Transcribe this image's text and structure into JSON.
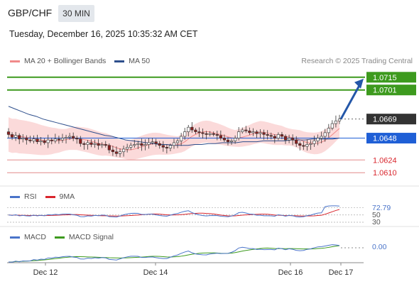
{
  "header": {
    "symbol": "GBP/CHF",
    "timeframe": "30 MIN",
    "datetime": "Tuesday, December 16, 2025 10:35:32 AM CET",
    "research": "Research © 2025 Trading Central"
  },
  "legends": {
    "price": [
      {
        "label": "MA 20 + Bollinger Bands",
        "color": "#f08a8a"
      },
      {
        "label": "MA 50",
        "color": "#2e4f8c"
      }
    ],
    "rsi": [
      {
        "label": "RSI",
        "color": "#4a74c9"
      },
      {
        "label": "9MA",
        "color": "#d9262d"
      }
    ],
    "macd": [
      {
        "label": "MACD",
        "color": "#4a74c9"
      },
      {
        "label": "MACD Signal",
        "color": "#3d9a1e"
      }
    ]
  },
  "colors": {
    "resistance": "#3d9a1e",
    "support": "#e38a8a",
    "pivot": "#1f5fd6",
    "current": "#333333",
    "arrow": "#2457a8",
    "bb_fill": "#fbd6d6",
    "candle_up": "#ffffff",
    "candle_down": "#8b1f1f"
  },
  "chart_data": [
    {
      "type": "candlestick",
      "title": "",
      "x_tick_labels": [
        "Dec 12",
        "Dec 14",
        "Dec 16",
        "Dec 17"
      ],
      "ylim": [
        1.06,
        1.0725
      ],
      "levels": [
        {
          "value": 1.0715,
          "label": "1.0715",
          "kind": "resistance"
        },
        {
          "value": 1.0701,
          "label": "1.0701",
          "kind": "resistance"
        },
        {
          "value": 1.0669,
          "label": "1.0669",
          "kind": "current"
        },
        {
          "value": 1.0648,
          "label": "1.0648",
          "kind": "pivot"
        },
        {
          "value": 1.0624,
          "label": "1.0624",
          "kind": "support"
        },
        {
          "value": 1.061,
          "label": "1.0610",
          "kind": "support"
        }
      ],
      "close_series": [
        1.0652,
        1.0649,
        1.0651,
        1.0647,
        1.0648,
        1.0646,
        1.0645,
        1.0647,
        1.0644,
        1.0645,
        1.0643,
        1.0646,
        1.0645,
        1.0647,
        1.0646,
        1.0648,
        1.0649,
        1.065,
        1.0648,
        1.0647,
        1.0642,
        1.0641,
        1.0643,
        1.0641,
        1.0642,
        1.064,
        1.0641,
        1.064,
        1.0635,
        1.0633,
        1.0631,
        1.0633,
        1.0636,
        1.0638,
        1.064,
        1.0641,
        1.0642,
        1.064,
        1.0641,
        1.0643,
        1.0644,
        1.0642,
        1.064,
        1.0638,
        1.0637,
        1.064,
        1.0643,
        1.0645,
        1.065,
        1.0655,
        1.066,
        1.0657,
        1.0655,
        1.0654,
        1.0653,
        1.0652,
        1.0653,
        1.0652,
        1.0651,
        1.0648,
        1.0646,
        1.0644,
        1.0645,
        1.0648,
        1.0655,
        1.0657,
        1.0656,
        1.0654,
        1.0655,
        1.0653,
        1.0654,
        1.0652,
        1.0651,
        1.065,
        1.0648,
        1.0652,
        1.065,
        1.0646,
        1.0648,
        1.0646,
        1.0642,
        1.064,
        1.0639,
        1.0641,
        1.0642,
        1.0645,
        1.0648,
        1.065,
        1.0654,
        1.0659,
        1.0664,
        1.0667,
        1.0669
      ],
      "ma50_series": [
        1.0683,
        1.068,
        1.0677,
        1.0674,
        1.0672,
        1.0669,
        1.0667,
        1.0665,
        1.0663,
        1.0661,
        1.0659,
        1.0657,
        1.0655,
        1.0653,
        1.0651,
        1.065,
        1.0648,
        1.0646,
        1.0645,
        1.0644,
        1.0643,
        1.0642,
        1.0641,
        1.0641,
        1.064,
        1.064,
        1.064,
        1.0641,
        1.0641,
        1.0642,
        1.0642,
        1.0643,
        1.0643,
        1.0643,
        1.0644,
        1.0644,
        1.0644,
        1.0645,
        1.0645,
        1.0645,
        1.0645,
        1.0646,
        1.0646,
        1.0646,
        1.0647,
        1.0647,
        1.0647,
        1.0647,
        1.0648
      ],
      "bollinger": {
        "upper_end": 1.0656,
        "lower_end": 1.063,
        "mid_end": 1.0648
      },
      "forecast_arrow": {
        "from": 1.0669,
        "to": 1.0715
      }
    },
    {
      "type": "line",
      "title": "",
      "series": [
        {
          "name": "RSI",
          "current": 72.79
        },
        {
          "name": "9MA"
        }
      ],
      "y_tick_labels": [
        "72.79",
        "50",
        "30"
      ],
      "levels": [
        70,
        50,
        30
      ]
    },
    {
      "type": "line",
      "title": "",
      "series": [
        {
          "name": "MACD",
          "current": 0.0
        },
        {
          "name": "MACD Signal"
        }
      ],
      "y_tick_labels": [
        "0.00"
      ]
    }
  ]
}
